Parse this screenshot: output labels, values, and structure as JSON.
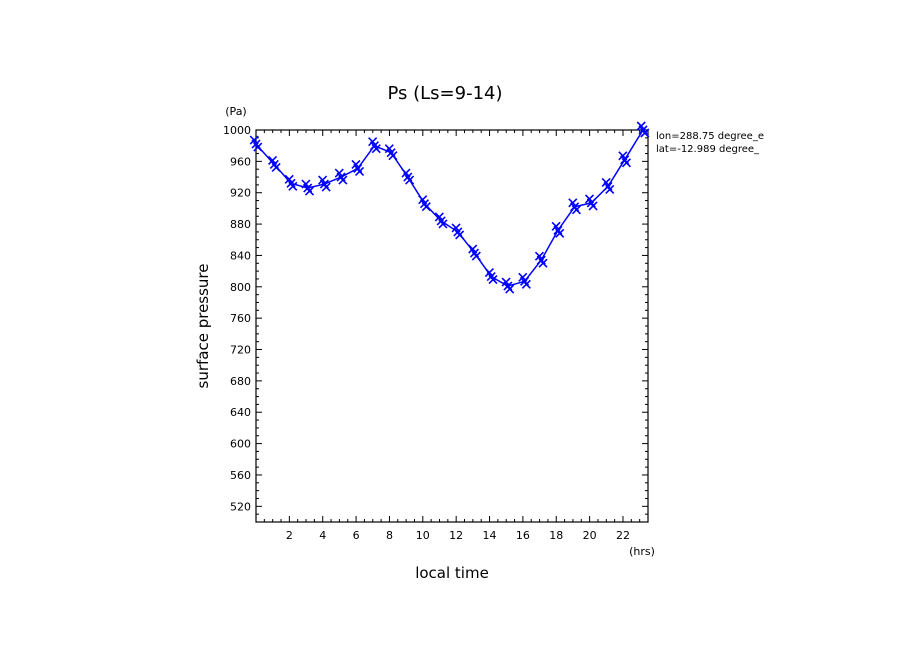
{
  "chart_data": {
    "type": "line",
    "title": "Ps (Ls=9-14)",
    "xlabel": "local time",
    "ylabel": "surface pressure",
    "x_unit": "(hrs)",
    "y_unit": "(Pa)",
    "xlim": [
      0,
      23.5
    ],
    "ylim": [
      500,
      1000
    ],
    "x_ticks": [
      2,
      4,
      6,
      8,
      10,
      12,
      14,
      16,
      18,
      20,
      22
    ],
    "y_ticks": [
      520,
      560,
      600,
      640,
      680,
      720,
      760,
      800,
      840,
      880,
      920,
      960,
      1000
    ],
    "annotation": [
      "lon=288.75 degree_e",
      "lat=-12.989 degree_"
    ],
    "color": "#0000ff",
    "series": [
      {
        "x": [
          0,
          1.1,
          2.1,
          3.1,
          4.1,
          5.1,
          6.1,
          7.1,
          8.1,
          9.1,
          10.1,
          11.1,
          12.1,
          13.1,
          14.1,
          15.1,
          16.1,
          17.1,
          18.1,
          19.1,
          20.1,
          21.1,
          22.1,
          23.2
        ],
        "values": [
          982,
          956,
          932,
          926,
          931,
          940,
          951,
          980,
          971,
          940,
          906,
          884,
          870,
          843,
          813,
          801,
          807,
          834,
          872,
          902,
          907,
          928,
          962,
          1000
        ]
      }
    ]
  }
}
